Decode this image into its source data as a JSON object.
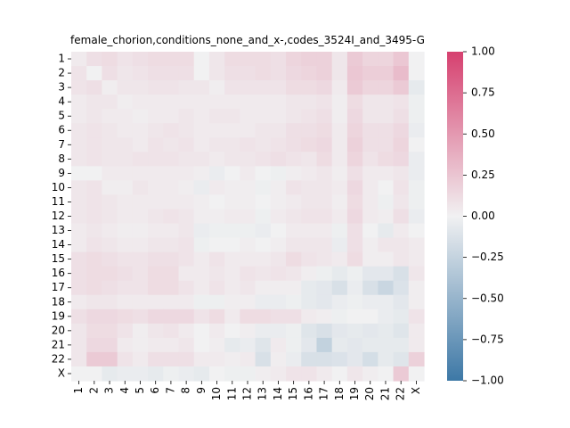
{
  "chart_data": {
    "type": "heatmap",
    "title": "female_chorion,conditions_none_and_x-,codes_3524I_and_3495-G",
    "xlabel": "",
    "ylabel": "",
    "x_labels": [
      "1",
      "2",
      "3",
      "4",
      "5",
      "6",
      "7",
      "8",
      "9",
      "10",
      "11",
      "12",
      "13",
      "14",
      "15",
      "16",
      "17",
      "18",
      "19",
      "20",
      "21",
      "22",
      "X"
    ],
    "y_labels": [
      "1",
      "2",
      "3",
      "4",
      "5",
      "6",
      "7",
      "8",
      "9",
      "10",
      "11",
      "12",
      "13",
      "14",
      "15",
      "16",
      "17",
      "18",
      "19",
      "20",
      "21",
      "22",
      "X"
    ],
    "color_range": [
      -1.0,
      1.0
    ],
    "colormap": {
      "negative": "#3d78a6",
      "zero": "#f1f1f2",
      "positive": "#d6406f"
    },
    "colorbar_ticks": [
      "1.00",
      "0.75",
      "0.50",
      "0.25",
      "0.00",
      "−0.25",
      "−0.50",
      "−0.75",
      "−1.00"
    ],
    "colorbar_tick_values": [
      1.0,
      0.75,
      0.5,
      0.25,
      0.0,
      -0.25,
      -0.5,
      -0.75,
      -1.0
    ],
    "values": [
      [
        0.04,
        0.1,
        0.12,
        0.08,
        0.1,
        0.12,
        0.12,
        0.12,
        0.0,
        0.06,
        0.12,
        0.12,
        0.12,
        0.1,
        0.16,
        0.18,
        0.18,
        0.06,
        0.22,
        0.16,
        0.16,
        0.24,
        0.0
      ],
      [
        0.08,
        0.0,
        0.1,
        0.06,
        0.08,
        0.1,
        0.1,
        0.1,
        0.0,
        0.06,
        0.1,
        0.1,
        0.12,
        0.1,
        0.14,
        0.16,
        0.18,
        0.06,
        0.24,
        0.2,
        0.2,
        0.3,
        0.0
      ],
      [
        0.08,
        0.1,
        0.02,
        0.06,
        0.06,
        0.08,
        0.08,
        0.06,
        0.06,
        0.02,
        0.08,
        0.08,
        0.08,
        0.08,
        0.12,
        0.12,
        0.14,
        0.04,
        0.22,
        0.16,
        0.16,
        0.22,
        -0.06
      ],
      [
        0.04,
        0.06,
        0.06,
        0.02,
        0.04,
        0.04,
        0.04,
        0.04,
        0.04,
        0.04,
        0.04,
        0.04,
        0.04,
        0.04,
        0.06,
        0.06,
        0.08,
        0.02,
        0.12,
        0.06,
        0.06,
        0.08,
        -0.02
      ],
      [
        0.04,
        0.06,
        0.04,
        0.04,
        0.02,
        0.04,
        0.04,
        0.06,
        0.04,
        0.06,
        0.06,
        0.04,
        0.04,
        0.04,
        0.06,
        0.08,
        0.1,
        0.02,
        0.14,
        0.06,
        0.06,
        0.1,
        -0.02
      ],
      [
        0.06,
        0.08,
        0.06,
        0.04,
        0.04,
        0.06,
        0.08,
        0.06,
        0.04,
        0.04,
        0.04,
        0.04,
        0.06,
        0.06,
        0.1,
        0.1,
        0.12,
        0.04,
        0.16,
        0.1,
        0.1,
        0.14,
        -0.04
      ],
      [
        0.06,
        0.08,
        0.06,
        0.06,
        0.04,
        0.08,
        0.06,
        0.08,
        0.04,
        0.06,
        0.06,
        0.08,
        0.06,
        0.08,
        0.1,
        0.12,
        0.14,
        0.04,
        0.18,
        0.1,
        0.1,
        0.16,
        0.0
      ],
      [
        0.06,
        0.08,
        0.06,
        0.06,
        0.08,
        0.08,
        0.08,
        0.06,
        0.06,
        0.04,
        0.06,
        0.06,
        0.08,
        0.1,
        0.08,
        0.06,
        0.12,
        0.04,
        0.16,
        0.08,
        0.12,
        0.14,
        -0.04
      ],
      [
        0.0,
        0.0,
        0.04,
        0.04,
        0.04,
        0.04,
        0.04,
        0.04,
        0.02,
        -0.04,
        0.0,
        0.04,
        0.0,
        -0.02,
        0.02,
        0.04,
        0.06,
        0.02,
        0.1,
        0.04,
        0.04,
        0.06,
        -0.04
      ],
      [
        0.06,
        0.08,
        0.02,
        0.02,
        0.06,
        0.04,
        0.04,
        0.02,
        -0.04,
        0.04,
        0.02,
        0.02,
        -0.02,
        0.02,
        0.08,
        0.06,
        0.06,
        0.04,
        0.14,
        0.04,
        0.0,
        0.08,
        -0.02
      ],
      [
        0.06,
        0.08,
        0.06,
        0.04,
        0.04,
        0.04,
        0.04,
        0.04,
        0.02,
        0.0,
        0.02,
        0.02,
        0.0,
        0.02,
        0.04,
        0.06,
        0.06,
        0.02,
        0.12,
        0.04,
        -0.02,
        0.06,
        -0.02
      ],
      [
        0.06,
        0.08,
        0.06,
        0.04,
        0.04,
        0.06,
        0.08,
        0.06,
        0.02,
        0.02,
        0.04,
        0.04,
        -0.02,
        0.04,
        0.06,
        0.08,
        0.08,
        0.04,
        0.14,
        0.04,
        0.02,
        0.1,
        -0.04
      ],
      [
        0.04,
        0.06,
        0.04,
        0.02,
        0.02,
        0.04,
        0.04,
        0.06,
        -0.04,
        -0.02,
        -0.02,
        -0.02,
        -0.04,
        0.0,
        0.04,
        0.04,
        0.04,
        -0.02,
        0.1,
        0.0,
        -0.06,
        0.04,
        0.0
      ],
      [
        0.04,
        0.08,
        0.06,
        0.04,
        0.04,
        0.06,
        0.06,
        0.08,
        -0.02,
        0.0,
        0.0,
        0.02,
        0.0,
        0.02,
        0.06,
        0.06,
        0.06,
        -0.04,
        0.1,
        0.02,
        0.06,
        0.06,
        0.04
      ],
      [
        0.1,
        0.12,
        0.1,
        0.08,
        0.08,
        0.1,
        0.1,
        0.08,
        0.04,
        0.08,
        0.04,
        0.04,
        0.04,
        0.06,
        0.12,
        0.08,
        0.06,
        0.04,
        0.12,
        0.02,
        0.02,
        0.06,
        0.04
      ],
      [
        0.1,
        0.12,
        0.12,
        0.1,
        0.08,
        0.12,
        0.12,
        0.04,
        0.04,
        0.06,
        0.04,
        0.08,
        0.06,
        0.08,
        0.06,
        0.02,
        -0.02,
        -0.06,
        -0.02,
        -0.08,
        -0.08,
        -0.14,
        0.06
      ],
      [
        0.1,
        0.12,
        0.1,
        0.08,
        0.08,
        0.12,
        0.12,
        0.08,
        0.04,
        0.08,
        0.04,
        0.06,
        0.02,
        0.02,
        0.02,
        -0.06,
        -0.08,
        -0.14,
        -0.04,
        -0.14,
        -0.22,
        -0.12,
        0.02
      ],
      [
        0.04,
        0.06,
        0.06,
        0.04,
        0.04,
        0.04,
        0.04,
        0.04,
        -0.02,
        -0.02,
        0.02,
        0.02,
        -0.04,
        -0.04,
        -0.02,
        -0.06,
        -0.08,
        -0.04,
        -0.02,
        -0.04,
        -0.04,
        -0.08,
        0.02
      ],
      [
        0.1,
        0.14,
        0.14,
        0.12,
        0.1,
        0.14,
        0.14,
        0.14,
        0.08,
        0.12,
        0.04,
        0.12,
        0.12,
        0.1,
        0.1,
        0.04,
        0.02,
        -0.02,
        0.0,
        0.0,
        -0.04,
        -0.06,
        0.08
      ],
      [
        0.06,
        0.12,
        0.12,
        0.08,
        0.02,
        0.06,
        0.08,
        0.04,
        0.0,
        0.04,
        0.0,
        0.02,
        -0.04,
        -0.04,
        -0.02,
        -0.1,
        -0.14,
        -0.08,
        -0.06,
        -0.08,
        -0.06,
        -0.1,
        0.04
      ],
      [
        0.06,
        0.14,
        0.14,
        0.04,
        0.02,
        0.04,
        0.04,
        0.06,
        0.0,
        0.02,
        -0.06,
        -0.04,
        -0.1,
        0.04,
        -0.02,
        -0.08,
        -0.26,
        -0.06,
        -0.08,
        -0.06,
        -0.06,
        -0.06,
        0.04
      ],
      [
        0.06,
        0.22,
        0.22,
        0.08,
        0.04,
        0.1,
        0.1,
        0.1,
        0.04,
        0.04,
        0.02,
        0.04,
        -0.14,
        0.02,
        -0.04,
        -0.14,
        -0.14,
        -0.12,
        -0.08,
        -0.16,
        -0.06,
        -0.1,
        0.18
      ],
      [
        0.0,
        0.0,
        -0.06,
        -0.04,
        -0.04,
        -0.06,
        -0.02,
        -0.04,
        -0.06,
        0.0,
        -0.02,
        -0.02,
        0.02,
        0.04,
        0.08,
        0.08,
        0.04,
        0.0,
        0.06,
        0.02,
        0.0,
        0.22,
        0.0
      ]
    ]
  }
}
